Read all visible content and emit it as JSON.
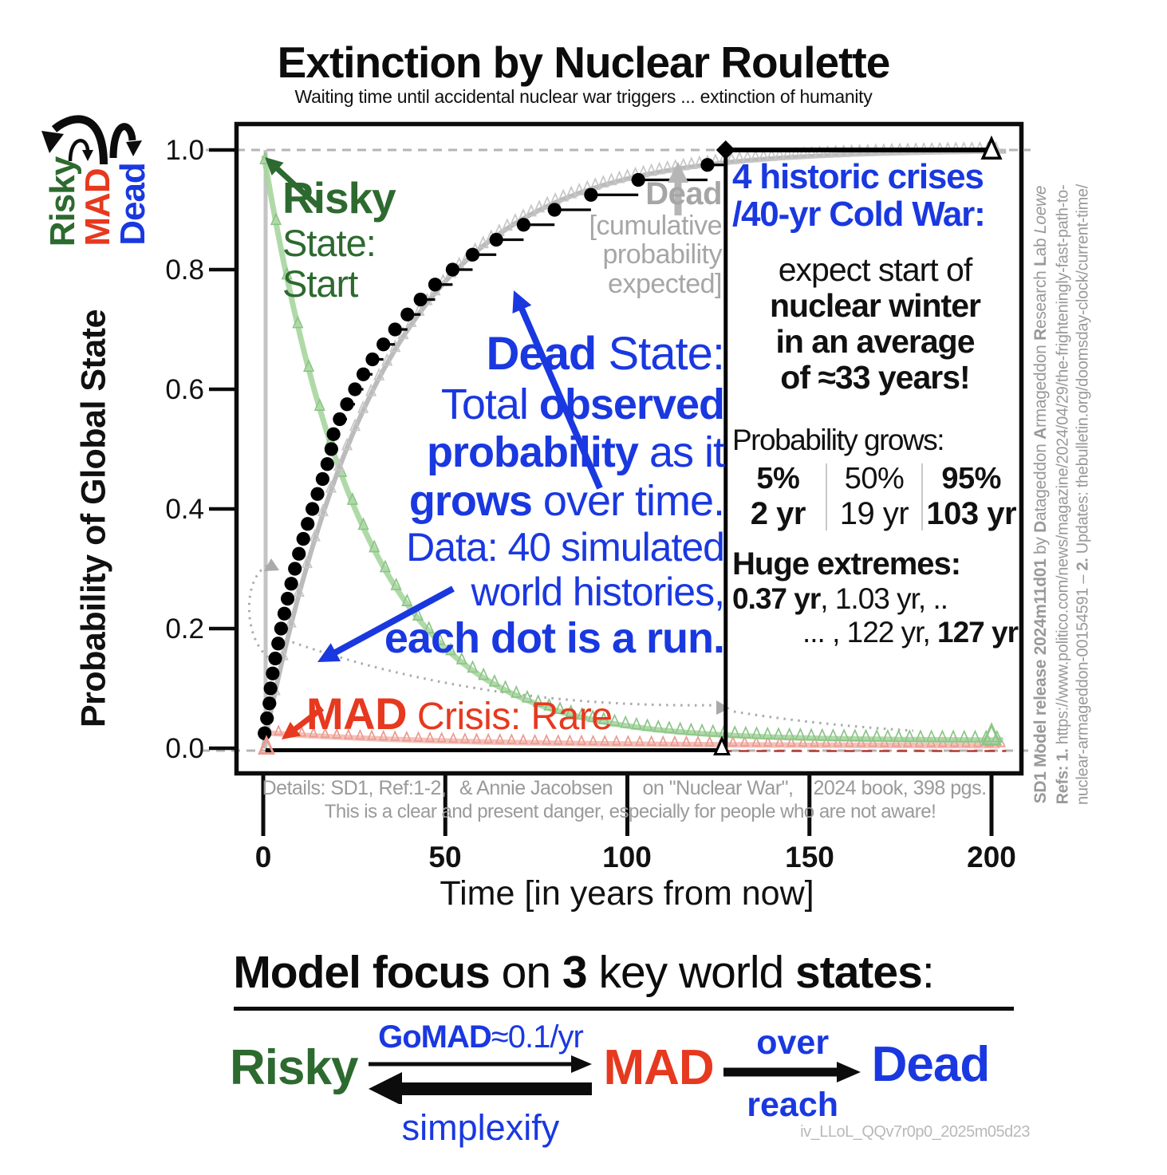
{
  "title": "Extinction by Nuclear Roulette",
  "subtitle": "Waiting time until accidental nuclear war triggers ... extinction of humanity",
  "colors": {
    "risky_green_dark": "#2d6a2f",
    "risky_green_curve": "#a6d69e",
    "risky_green_marker": "#8cc487",
    "mad_red": "#e6391f",
    "mad_pink_curve": "#f2b6ae",
    "mad_pink_marker": "#eb9a90",
    "mad_dark_dash": "#b03a2e",
    "dead_blue": "#1a38e0",
    "expected_gray": "#bbbbbb",
    "expected_gray_marker": "#c6c6c6",
    "annot_gray": "#a6a6a6",
    "dotted_gray": "#aaaaaa",
    "black": "#0c0c0c"
  },
  "y_axis": {
    "label": "Probability of Global State",
    "ticks": [
      "1.0",
      "0.8",
      "0.6",
      "0.4",
      "0.2",
      "0.0"
    ]
  },
  "x_axis": {
    "label": "Time [in years from now]",
    "ticks": [
      "0",
      "50",
      "100",
      "150",
      "200"
    ]
  },
  "state_labels": {
    "risky": "Risky",
    "mad": "MAD",
    "dead": "Dead"
  },
  "annotations": {
    "risky": {
      "line1": "Risky",
      "line2": "State:",
      "line3": "Start"
    },
    "dead_expected": {
      "line1": "Dead",
      "line2": "[cumulative",
      "line3": "probability",
      "line4": "expected]"
    },
    "dead_observed_lines": [
      [
        {
          "t": "Dead",
          "b": 1
        },
        {
          "t": " State:"
        }
      ],
      [
        {
          "t": "Total "
        },
        {
          "t": "observed",
          "b": 1
        }
      ],
      [
        {
          "t": "probability",
          "b": 1
        },
        {
          "t": " as it"
        }
      ],
      [
        {
          "t": "grows",
          "b": 1
        },
        {
          "t": " over time."
        }
      ],
      [
        {
          "t": "Data: 40 simulated"
        }
      ],
      [
        {
          "t": "world histories,"
        }
      ],
      [
        {
          "t": "each dot is a run.",
          "b": 1
        }
      ]
    ],
    "mad": [
      {
        "t": "MAD",
        "b": 1
      },
      {
        "t": " Crisis: Rare"
      }
    ]
  },
  "panel": {
    "headline1": "4 historic crises",
    "headline2": "/40-yr Cold War:",
    "body": [
      [
        {
          "t": "expect start of"
        }
      ],
      [
        {
          "t": "nuclear winter",
          "b": 1
        }
      ],
      [
        {
          "t": "in an average",
          "b": 1
        }
      ],
      [
        {
          "t": "of ≈33 years!",
          "b": 1
        }
      ]
    ],
    "prob_grows_label": "Probability grows:",
    "quantiles": [
      {
        "pct": "5%",
        "yr": "2 yr",
        "bold": true
      },
      {
        "pct": "50%",
        "yr": "19 yr",
        "bold": false
      },
      {
        "pct": "95%",
        "yr": "103 yr",
        "bold": true
      }
    ],
    "extremes_label": "Huge extremes:",
    "extremes_line1": [
      {
        "t": "0.37 yr",
        "b": 1
      },
      {
        "t": ", 1.03 yr, .."
      }
    ],
    "extremes_line2": [
      {
        "t": "... , 122 yr, "
      },
      {
        "t": "127 yr",
        "b": 1
      }
    ]
  },
  "details_row": [
    "Details: SD1, Ref:1-2,",
    "& Annie Jacobsen",
    "on \"Nuclear War\",",
    "2024 book, 398 pgs."
  ],
  "details_note": "This is a clear and present danger, especially for people who are not aware!",
  "sidebar": {
    "col1": [
      {
        "t": "SD1 Model release 2024m11d01",
        "b": 1
      },
      {
        "t": " by "
      },
      {
        "t": "D",
        "b": 1
      },
      {
        "t": "atageddon "
      },
      {
        "t": "A",
        "b": 1
      },
      {
        "t": "rmageddon "
      },
      {
        "t": "R",
        "b": 1
      },
      {
        "t": "esearch "
      },
      {
        "t": "L",
        "b": 1
      },
      {
        "t": "ab "
      },
      {
        "t": "Loewe",
        "i": 1
      }
    ],
    "col2": [
      {
        "t": "Refs: 1.",
        "b": 1
      },
      {
        "t": " https://www.politico.com/news/magazine/2024/04/29/the-frighteningly-fast-path-to-"
      }
    ],
    "col3": [
      {
        "t": "nuclear-armageddon-00154591  –  "
      },
      {
        "t": "2.",
        "b": 1
      },
      {
        "t": " Updates:  thebulletin.org/doomsday-clock/current-time/"
      }
    ]
  },
  "footer": {
    "heading": [
      {
        "t": "Model focus",
        "b": 1
      },
      {
        "t": " on "
      },
      {
        "t": "3",
        "b": 1
      },
      {
        "t": " key world "
      },
      {
        "t": "states",
        "b": 1
      },
      {
        "t": ":"
      }
    ],
    "diagram": {
      "risky": "Risky",
      "gomad": [
        {
          "t": "GoMAD",
          "b": 1
        },
        {
          "t": "≈0.1/yr"
        }
      ],
      "simplexify": "simplexify",
      "mad": "MAD",
      "over": "over",
      "reach": "reach",
      "dead": "Dead"
    },
    "watermark": "iv_LLoL_QQv7r0p0_2025m05d23"
  },
  "chart_data": {
    "type": "line",
    "title": "Extinction by Nuclear Roulette",
    "subtitle": "Waiting time until accidental nuclear war triggers ... extinction of humanity",
    "xlabel": "Time [in years from now]",
    "ylabel": "Probability of Global State",
    "xlim": [
      0,
      200
    ],
    "ylim": [
      0,
      1
    ],
    "x_ticks": [
      0,
      50,
      100,
      150,
      200
    ],
    "y_ticks": [
      0.0,
      0.2,
      0.4,
      0.6,
      0.8,
      1.0
    ],
    "grid": false,
    "n_runs": 40,
    "mean_wait_years": 33,
    "quantiles": {
      "5%": 2,
      "50%": 19,
      "95%": 103
    },
    "extreme_years": [
      0.37,
      1.03,
      122,
      127
    ],
    "last_event_year": 127,
    "series": [
      {
        "name": "Dead observed cumulative probability (ECDF, each dot is a run)",
        "style": "black dots with step lines",
        "run_years_sorted": [
          0.37,
          1.03,
          1.7,
          2.0,
          2.6,
          3.3,
          4.1,
          4.9,
          5.8,
          6.7,
          7.7,
          8.7,
          9.8,
          11.0,
          12.2,
          13.5,
          14.9,
          16.3,
          17.6,
          18.7,
          19.3,
          21.0,
          23.0,
          25.2,
          27.5,
          30.0,
          33.0,
          36.2,
          39.6,
          43.2,
          47.2,
          52.0,
          57.5,
          64.0,
          71.5,
          80.0,
          90.0,
          103.0,
          122.0,
          127.0
        ]
      },
      {
        "name": "Dead cumulative probability expected",
        "style": "gray line with open triangles",
        "model": "1-exp(-t/33)",
        "mean_years": 33
      },
      {
        "name": "Risky state probability",
        "style": "light green line with open triangles",
        "model": "0.985*exp(-t/27)+0.013",
        "params": {
          "scale": 0.985,
          "tau": 27,
          "floor": 0.013
        }
      },
      {
        "name": "MAD state probability",
        "style": "pink line with open triangles and dark red dashes",
        "model": "0.022*exp(-t/50)+0.004",
        "params": {
          "scale": 0.022,
          "tau": 50,
          "floor": 0.004
        }
      }
    ],
    "legend_position": "annotated in-plot"
  }
}
